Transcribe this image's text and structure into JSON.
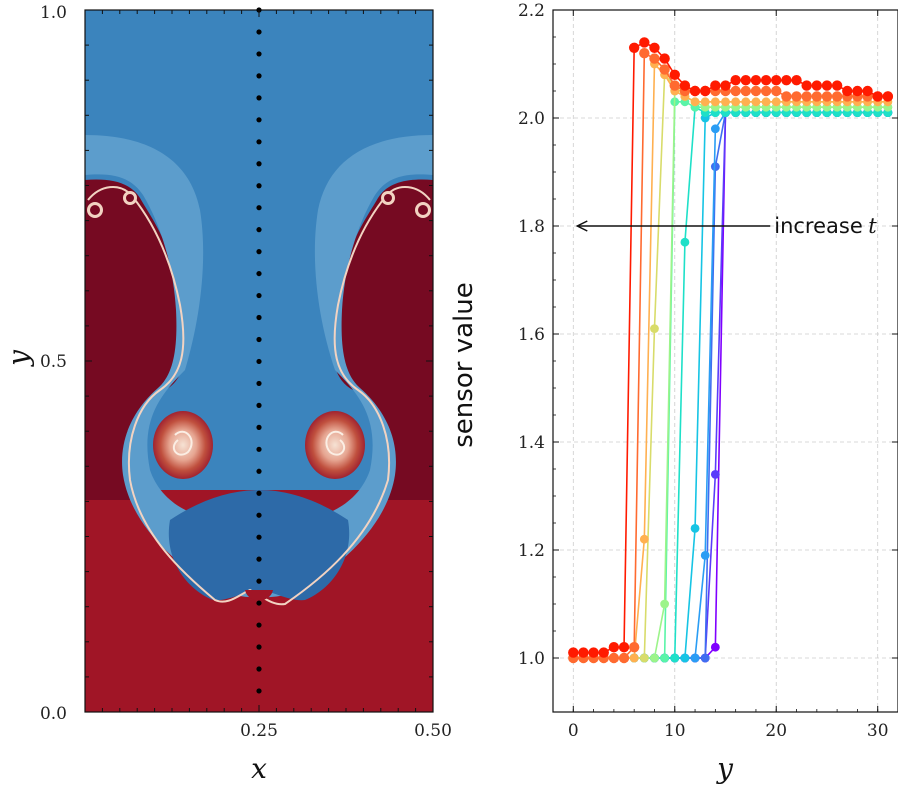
{
  "chart_data": [
    {
      "type": "heatmap",
      "xlabel": "x",
      "ylabel": "y",
      "xlim": [
        0.0,
        0.5
      ],
      "ylim": [
        0.0,
        1.0
      ],
      "x_ticks": [
        "0.25",
        "0.50"
      ],
      "y_ticks": [
        "0.0",
        "0.5",
        "1.0"
      ],
      "sensor_line_x": 0.25,
      "colors": {
        "heavy_fluid": "#7a0b22",
        "heavy_fluid_edge": "#a01526",
        "light_fluid": "#3b84bd",
        "light_fluid_pale": "#5c9dcc",
        "light_fluid_dark": "#2d6aa8",
        "interface": "#f2d3c2"
      }
    },
    {
      "type": "line",
      "xlabel": "y",
      "ylabel": "sensor value",
      "xlim": [
        -2,
        32
      ],
      "ylim": [
        0.9,
        2.2
      ],
      "x_ticks": [
        "0",
        "10",
        "20",
        "30"
      ],
      "y_ticks": [
        "1.0",
        "1.2",
        "1.4",
        "1.6",
        "1.8",
        "2.0",
        "2.2"
      ],
      "grid": true,
      "annotation": {
        "text": "increase",
        "variable": "t",
        "arrow_to": [
          0,
          1.8
        ],
        "text_at": [
          20,
          1.8
        ]
      },
      "colormap": "rainbow",
      "series": [
        {
          "color": "#7f00ff",
          "front": 14.0,
          "low": 1.0,
          "high": 2.01,
          "values": [
            1.0,
            1.0,
            1.0,
            1.0,
            1.0,
            1.0,
            1.0,
            1.0,
            1.0,
            1.0,
            1.0,
            1.0,
            1.0,
            1.0,
            1.02,
            2.01,
            2.01,
            2.01,
            2.01,
            2.01,
            2.01,
            2.01,
            2.01,
            2.01,
            2.01,
            2.01,
            2.01,
            2.01,
            2.01,
            2.01,
            2.01,
            2.01
          ]
        },
        {
          "color": "#5a3cfa",
          "front": 13.6,
          "low": 1.0,
          "high": 2.01,
          "values": [
            1.0,
            1.0,
            1.0,
            1.0,
            1.0,
            1.0,
            1.0,
            1.0,
            1.0,
            1.0,
            1.0,
            1.0,
            1.0,
            1.0,
            1.34,
            2.01,
            2.01,
            2.01,
            2.01,
            2.01,
            2.01,
            2.01,
            2.01,
            2.01,
            2.01,
            2.01,
            2.01,
            2.01,
            2.01,
            2.01,
            2.01,
            2.01
          ]
        },
        {
          "color": "#3f6ef0",
          "front": 13.2,
          "low": 1.0,
          "high": 2.01,
          "values": [
            1.0,
            1.0,
            1.0,
            1.0,
            1.0,
            1.0,
            1.0,
            1.0,
            1.0,
            1.0,
            1.0,
            1.0,
            1.0,
            1.0,
            1.91,
            2.01,
            2.01,
            2.01,
            2.01,
            2.01,
            2.01,
            2.01,
            2.01,
            2.01,
            2.01,
            2.01,
            2.01,
            2.01,
            2.01,
            2.01,
            2.01,
            2.01
          ]
        },
        {
          "color": "#2a9df4",
          "front": 12.6,
          "low": 1.0,
          "high": 2.01,
          "values": [
            1.0,
            1.0,
            1.0,
            1.0,
            1.0,
            1.0,
            1.0,
            1.0,
            1.0,
            1.0,
            1.0,
            1.0,
            1.0,
            1.19,
            1.98,
            2.01,
            2.01,
            2.01,
            2.01,
            2.01,
            2.01,
            2.01,
            2.01,
            2.01,
            2.01,
            2.01,
            2.01,
            2.01,
            2.01,
            2.01,
            2.01,
            2.01
          ]
        },
        {
          "color": "#16c4e4",
          "front": 12.0,
          "low": 1.0,
          "high": 2.01,
          "values": [
            1.0,
            1.0,
            1.0,
            1.0,
            1.0,
            1.0,
            1.0,
            1.0,
            1.0,
            1.0,
            1.0,
            1.0,
            1.24,
            2.0,
            2.01,
            2.01,
            2.01,
            2.01,
            2.01,
            2.01,
            2.01,
            2.01,
            2.01,
            2.01,
            2.01,
            2.01,
            2.01,
            2.01,
            2.01,
            2.01,
            2.01,
            2.01
          ]
        },
        {
          "color": "#1ee0c8",
          "front": 11.0,
          "low": 1.0,
          "high": 2.01,
          "values": [
            1.0,
            1.0,
            1.0,
            1.0,
            1.0,
            1.0,
            1.0,
            1.0,
            1.0,
            1.0,
            1.0,
            1.77,
            2.02,
            2.01,
            2.01,
            2.01,
            2.01,
            2.01,
            2.01,
            2.01,
            2.01,
            2.01,
            2.01,
            2.01,
            2.01,
            2.01,
            2.01,
            2.01,
            2.01,
            2.01,
            2.01,
            2.01
          ]
        },
        {
          "color": "#5af4a8",
          "front": 10.0,
          "low": 1.0,
          "high": 2.02,
          "values": [
            1.0,
            1.0,
            1.0,
            1.0,
            1.0,
            1.0,
            1.0,
            1.0,
            1.0,
            1.0,
            2.03,
            2.03,
            2.02,
            2.02,
            2.02,
            2.02,
            2.02,
            2.02,
            2.02,
            2.02,
            2.02,
            2.02,
            2.02,
            2.02,
            2.02,
            2.02,
            2.02,
            2.02,
            2.02,
            2.02,
            2.02,
            2.02
          ]
        },
        {
          "color": "#9cf48a",
          "front": 9.0,
          "low": 1.0,
          "high": 2.02,
          "values": [
            1.0,
            1.0,
            1.0,
            1.0,
            1.0,
            1.0,
            1.0,
            1.0,
            1.0,
            1.1,
            2.05,
            2.04,
            2.03,
            2.02,
            2.02,
            2.02,
            2.02,
            2.02,
            2.02,
            2.02,
            2.02,
            2.02,
            2.02,
            2.02,
            2.02,
            2.02,
            2.02,
            2.02,
            2.02,
            2.02,
            2.02,
            2.02
          ]
        },
        {
          "color": "#d8dc6a",
          "front": 8.2,
          "low": 1.0,
          "high": 2.03,
          "values": [
            1.0,
            1.0,
            1.0,
            1.0,
            1.0,
            1.0,
            1.0,
            1.0,
            1.61,
            2.08,
            2.06,
            2.04,
            2.03,
            2.03,
            2.03,
            2.03,
            2.03,
            2.03,
            2.03,
            2.03,
            2.03,
            2.03,
            2.03,
            2.03,
            2.03,
            2.03,
            2.03,
            2.03,
            2.03,
            2.03,
            2.03,
            2.03
          ]
        },
        {
          "color": "#ffb050",
          "front": 7.2,
          "low": 1.0,
          "high": 2.03,
          "values": [
            1.0,
            1.0,
            1.0,
            1.0,
            1.0,
            1.0,
            1.0,
            1.22,
            2.1,
            2.08,
            2.05,
            2.04,
            2.03,
            2.03,
            2.03,
            2.03,
            2.03,
            2.03,
            2.03,
            2.03,
            2.03,
            2.03,
            2.03,
            2.03,
            2.03,
            2.03,
            2.03,
            2.03,
            2.03,
            2.03,
            2.03,
            2.03
          ]
        },
        {
          "color": "#ff6a30",
          "front": 6.3,
          "low": 1.0,
          "high": 2.04,
          "values": [
            1.0,
            1.0,
            1.0,
            1.0,
            1.0,
            1.0,
            1.02,
            2.12,
            2.11,
            2.09,
            2.06,
            2.05,
            2.05,
            2.05,
            2.05,
            2.05,
            2.05,
            2.05,
            2.05,
            2.05,
            2.05,
            2.04,
            2.04,
            2.04,
            2.04,
            2.04,
            2.04,
            2.04,
            2.04,
            2.04,
            2.04,
            2.04
          ]
        },
        {
          "color": "#ff1a00",
          "front": 5.6,
          "low": 1.01,
          "high": 2.06,
          "values": [
            1.01,
            1.01,
            1.01,
            1.01,
            1.02,
            1.02,
            2.13,
            2.14,
            2.13,
            2.11,
            2.08,
            2.06,
            2.05,
            2.05,
            2.06,
            2.06,
            2.07,
            2.07,
            2.07,
            2.07,
            2.07,
            2.07,
            2.07,
            2.06,
            2.06,
            2.06,
            2.06,
            2.05,
            2.05,
            2.05,
            2.04,
            2.04
          ]
        }
      ]
    }
  ]
}
